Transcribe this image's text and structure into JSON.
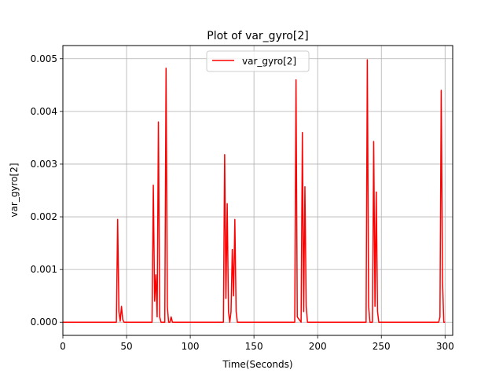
{
  "chart_data": {
    "type": "line",
    "title": "Plot of var_gyro[2]",
    "xlabel": "Time(Seconds)",
    "ylabel": "var_gyro[2]",
    "xlim": [
      0,
      306
    ],
    "ylim": [
      -0.00025,
      0.00525
    ],
    "xticks": [
      0,
      50,
      100,
      150,
      200,
      250,
      300
    ],
    "yticks": [
      0.0,
      0.001,
      0.002,
      0.003,
      0.004,
      0.005
    ],
    "xtick_labels": [
      "0",
      "50",
      "100",
      "150",
      "200",
      "250",
      "300"
    ],
    "ytick_labels": [
      "0.000",
      "0.001",
      "0.002",
      "0.003",
      "0.004",
      "0.005"
    ],
    "grid": true,
    "legend": "upper center",
    "series": [
      {
        "name": "var_gyro[2]",
        "color": "#ff0000",
        "x": [
          0,
          42,
          43,
          44,
          45,
          46,
          47,
          48,
          49,
          70,
          71,
          72,
          73,
          74,
          75,
          76,
          77,
          78,
          80,
          81,
          82,
          83,
          84,
          85,
          86,
          87,
          88,
          126,
          127,
          128,
          129,
          130,
          131,
          132,
          133,
          134,
          135,
          136,
          137,
          138,
          139,
          182,
          183,
          184,
          187,
          188,
          189,
          190,
          191,
          192,
          238,
          239,
          240,
          241,
          243,
          244,
          245,
          246,
          247,
          248,
          295,
          296,
          297,
          298,
          299,
          300
        ],
        "y": [
          0,
          0,
          0.00195,
          0.0002,
          2e-05,
          0.0003,
          5e-05,
          0,
          0,
          0,
          0.0026,
          0.0004,
          0.0009,
          0.0001,
          0.0038,
          0.0001,
          0,
          0,
          0,
          0.00482,
          0.0003,
          0,
          0,
          0.0001,
          0,
          0,
          0,
          0,
          0.00318,
          0.00045,
          0.00225,
          0.0002,
          0,
          0.0002,
          0.00138,
          0.0005,
          0.00195,
          0.0002,
          0,
          0,
          0,
          0,
          0.0046,
          0.0001,
          0,
          0.0036,
          0.0002,
          0.00257,
          0.0003,
          0,
          0,
          0.00498,
          0.0003,
          0,
          0,
          0.00343,
          0.0003,
          0.00247,
          0.0002,
          0,
          0,
          0.0001,
          0.0044,
          0.0008,
          0,
          0
        ]
      }
    ]
  }
}
